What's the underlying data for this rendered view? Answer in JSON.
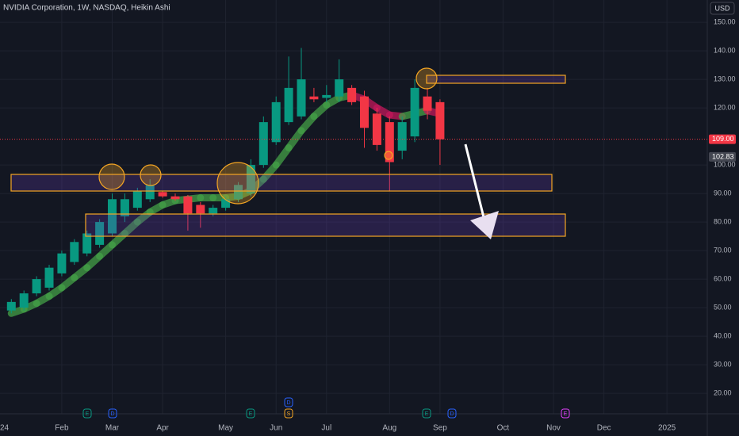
{
  "chart_data": {
    "type": "candlestick",
    "title": "NVIDIA Corporation, 1W, NASDAQ, Heikin Ashi",
    "currency": "USD",
    "xlim": [
      -0.9,
      55.2
    ],
    "ylim": [
      12.8,
      157.8
    ],
    "xticks": [
      {
        "value": -1,
        "label": "24"
      },
      {
        "value": 4,
        "label": "Feb"
      },
      {
        "value": 8,
        "label": "Mar"
      },
      {
        "value": 12,
        "label": "Apr"
      },
      {
        "value": 17,
        "label": "May"
      },
      {
        "value": 21,
        "label": "Jun"
      },
      {
        "value": 25,
        "label": "Jul"
      },
      {
        "value": 30,
        "label": "Aug"
      },
      {
        "value": 34,
        "label": "Sep"
      },
      {
        "value": 39,
        "label": "Oct"
      },
      {
        "value": 43,
        "label": "Nov"
      },
      {
        "value": 47,
        "label": "Dec"
      },
      {
        "value": 52,
        "label": "2025"
      }
    ],
    "yticks": [
      {
        "value": 20,
        "label": "20.00"
      },
      {
        "value": 30,
        "label": "30.00"
      },
      {
        "value": 40,
        "label": "40.00"
      },
      {
        "value": 50,
        "label": "50.00"
      },
      {
        "value": 60,
        "label": "60.00"
      },
      {
        "value": 70,
        "label": "70.00"
      },
      {
        "value": 80,
        "label": "80.00"
      },
      {
        "value": 90,
        "label": "90.00"
      },
      {
        "value": 100,
        "label": "100.00"
      },
      {
        "value": 120,
        "label": "120.00"
      },
      {
        "value": 130,
        "label": "130.00"
      },
      {
        "value": 140,
        "label": "140.00"
      },
      {
        "value": 150,
        "label": "150.00"
      }
    ],
    "open": [
      49,
      50,
      55,
      57,
      62,
      66,
      69,
      72,
      76,
      82,
      85,
      88,
      90.5,
      89,
      89,
      86,
      83,
      85,
      88,
      90,
      100,
      108,
      115,
      117,
      124,
      123.5,
      124,
      127,
      124,
      118,
      115,
      105,
      110,
      124,
      122
    ],
    "high": [
      53,
      56,
      61,
      65,
      70,
      74,
      77,
      81,
      90,
      90,
      92,
      95,
      91,
      90,
      89.5,
      87,
      86,
      89,
      94,
      102,
      117,
      124,
      138,
      141,
      127,
      128,
      137,
      128,
      126,
      120,
      117,
      117,
      130,
      127,
      123
    ],
    "low": [
      48,
      49,
      54,
      56,
      61,
      65,
      68,
      71,
      75,
      80,
      84,
      87,
      88.5,
      87.5,
      77,
      78,
      82,
      84,
      87,
      89,
      99,
      107,
      114,
      116,
      122,
      122,
      122,
      121,
      106,
      105,
      91,
      102,
      108,
      116,
      100
    ],
    "close": [
      52,
      55,
      60,
      64,
      69,
      73,
      76,
      80,
      88,
      88,
      91,
      93,
      89,
      88,
      83,
      83,
      85,
      88,
      93,
      100,
      115,
      122,
      127,
      130,
      123,
      124.5,
      130,
      122,
      113,
      107,
      101,
      115,
      127,
      119,
      109
    ],
    "up_color": "#089981",
    "down_color": "#f23645",
    "ma": [
      48,
      49.5,
      51.5,
      54,
      57,
      60.5,
      64,
      68,
      72,
      76,
      80,
      83.5,
      86,
      87.5,
      88,
      88.5,
      88.5,
      88.5,
      89,
      91,
      95,
      100,
      106,
      112,
      117,
      121,
      123.5,
      124.5,
      123,
      120,
      117.5,
      117,
      118,
      119,
      118
    ],
    "ma_up_color": "#43a047",
    "ma_down_color": "#c2185b",
    "price_labels": [
      {
        "value": 109,
        "label": "109.00"
      },
      {
        "value": 102.83,
        "label": "102.83"
      }
    ],
    "events": [
      "E",
      "D",
      "E",
      "D",
      "S",
      "E",
      "D",
      "E"
    ]
  }
}
